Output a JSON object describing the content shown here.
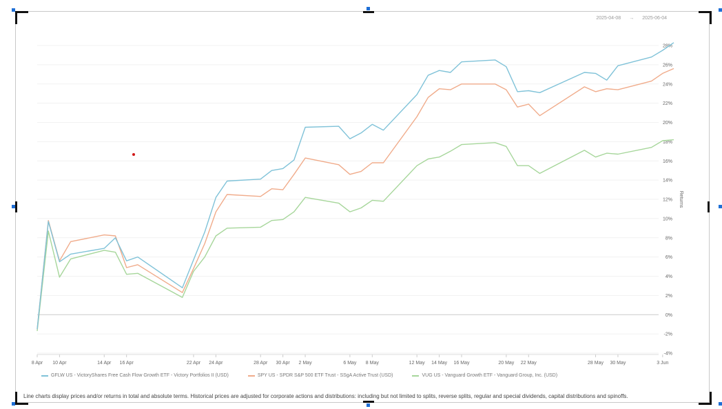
{
  "daterange": {
    "start": "2025-04-08",
    "arrow": "→",
    "end": "2025-06-04"
  },
  "colors": {
    "series1": "#7fc2d8",
    "series2": "#f0ab8a",
    "series3": "#a6d69a"
  },
  "chart_data": {
    "type": "line",
    "xlabel": "",
    "ylabel": "Returns",
    "ylim": [
      -4,
      28
    ],
    "yticks": [
      "28%",
      "26%",
      "24%",
      "22%",
      "20%",
      "18%",
      "16%",
      "14%",
      "12%",
      "10%",
      "8%",
      "6%",
      "4%",
      "2%",
      "0%",
      "-2%",
      "-4%"
    ],
    "x_tick_labels": [
      "8 Apr",
      "10 Apr",
      "14 Apr",
      "16 Apr",
      "22 Apr",
      "24 Apr",
      "28 Apr",
      "30 Apr",
      "2 May",
      "6 May",
      "8 May",
      "12 May",
      "14 May",
      "16 May",
      "20 May",
      "22 May",
      "28 May",
      "30 May",
      "3 Jun"
    ],
    "x": [
      "2025-04-08",
      "2025-04-09",
      "2025-04-10",
      "2025-04-11",
      "2025-04-14",
      "2025-04-15",
      "2025-04-16",
      "2025-04-17",
      "2025-04-21",
      "2025-04-22",
      "2025-04-23",
      "2025-04-24",
      "2025-04-25",
      "2025-04-28",
      "2025-04-29",
      "2025-04-30",
      "2025-05-01",
      "2025-05-02",
      "2025-05-05",
      "2025-05-06",
      "2025-05-07",
      "2025-05-08",
      "2025-05-09",
      "2025-05-12",
      "2025-05-13",
      "2025-05-14",
      "2025-05-15",
      "2025-05-16",
      "2025-05-19",
      "2025-05-20",
      "2025-05-21",
      "2025-05-22",
      "2025-05-23",
      "2025-05-27",
      "2025-05-28",
      "2025-05-29",
      "2025-05-30",
      "2025-06-02",
      "2025-06-03",
      "2025-06-04"
    ],
    "series": [
      {
        "name": "GFLW US - VictoryShares Free Cash Flow Growth ETF - Victory Portfolios II (USD)",
        "values": [
          -1.5,
          9.7,
          5.5,
          6.3,
          6.9,
          8.0,
          5.6,
          6.0,
          2.8,
          5.7,
          8.6,
          12.2,
          13.9,
          14.1,
          15.0,
          15.2,
          16.1,
          19.5,
          19.6,
          18.3,
          18.9,
          19.8,
          19.2,
          22.9,
          24.9,
          25.4,
          25.2,
          26.3,
          26.5,
          25.8,
          23.2,
          23.3,
          23.1,
          25.2,
          25.1,
          24.4,
          25.9,
          26.8,
          27.5,
          28.3
        ]
      },
      {
        "name": "SPY US - SPDR S&P 500 ETF Trust - SSgA Active Trust (USD)",
        "values": [
          -1.5,
          9.8,
          5.6,
          7.6,
          8.3,
          8.2,
          4.9,
          5.2,
          2.3,
          4.8,
          7.4,
          10.7,
          12.5,
          12.3,
          13.1,
          13.0,
          14.6,
          16.3,
          15.6,
          14.6,
          14.9,
          15.8,
          15.8,
          20.6,
          22.6,
          23.5,
          23.4,
          24.0,
          24.0,
          23.4,
          21.6,
          21.9,
          20.7,
          23.7,
          23.2,
          23.5,
          23.4,
          24.3,
          25.1,
          25.6
        ]
      },
      {
        "name": "VUG US - Vanguard Growth ETF - Vanguard Group, Inc. (USD)",
        "values": [
          -1.7,
          8.7,
          3.9,
          5.8,
          6.7,
          6.5,
          4.2,
          4.3,
          1.8,
          4.5,
          6.0,
          8.2,
          9.0,
          9.1,
          9.8,
          9.9,
          10.7,
          12.2,
          11.6,
          10.7,
          11.1,
          11.9,
          11.8,
          15.5,
          16.2,
          16.4,
          17.0,
          17.7,
          17.9,
          17.5,
          15.5,
          15.5,
          14.7,
          17.1,
          16.4,
          16.8,
          16.7,
          17.4,
          18.1,
          18.2
        ]
      }
    ]
  },
  "footnote": "Line charts display prices and/or returns in total and absolute terms. Historical prices are adjusted for corporate actions and distributions: including but not limited to splits, reverse splits, regular and special dividends, capital distributions and spinoffs."
}
